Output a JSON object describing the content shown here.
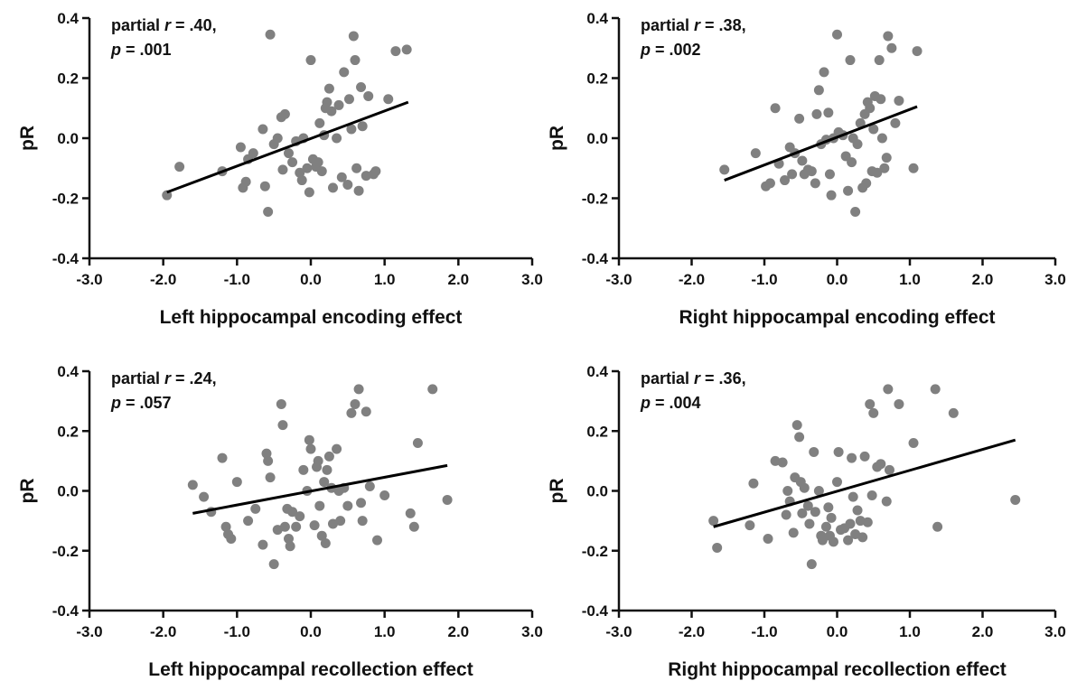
{
  "chart_data": [
    {
      "type": "scatter",
      "xlabel": "Left hippocampal encoding effect",
      "ylabel": "pR",
      "xlim": [
        -3.0,
        3.0
      ],
      "ylim": [
        -0.4,
        0.4
      ],
      "xticks": [
        "-3.0",
        "-2.0",
        "-1.0",
        "0.0",
        "1.0",
        "2.0",
        "3.0"
      ],
      "yticks": [
        "-0.4",
        "-0.2",
        "0.0",
        "0.2",
        "0.4"
      ],
      "annotation": {
        "stat_line": "partial r = .40,",
        "p_line": "p = .001"
      },
      "fit_line": {
        "x": [
          -1.95,
          1.32
        ],
        "y": [
          -0.18,
          0.12
        ]
      },
      "points": [
        {
          "x": -1.95,
          "y": -0.19
        },
        {
          "x": -1.78,
          "y": -0.095
        },
        {
          "x": -1.2,
          "y": -0.11
        },
        {
          "x": -0.95,
          "y": -0.03
        },
        {
          "x": -0.92,
          "y": -0.165
        },
        {
          "x": -0.88,
          "y": -0.145
        },
        {
          "x": -0.85,
          "y": -0.07
        },
        {
          "x": -0.78,
          "y": -0.05
        },
        {
          "x": -0.65,
          "y": 0.03
        },
        {
          "x": -0.62,
          "y": -0.16
        },
        {
          "x": -0.58,
          "y": -0.245
        },
        {
          "x": -0.55,
          "y": 0.345
        },
        {
          "x": -0.5,
          "y": -0.02
        },
        {
          "x": -0.45,
          "y": 0.0
        },
        {
          "x": -0.4,
          "y": 0.07
        },
        {
          "x": -0.38,
          "y": -0.105
        },
        {
          "x": -0.35,
          "y": 0.08
        },
        {
          "x": -0.3,
          "y": -0.05
        },
        {
          "x": -0.25,
          "y": -0.08
        },
        {
          "x": -0.2,
          "y": -0.01
        },
        {
          "x": -0.15,
          "y": -0.115
        },
        {
          "x": -0.12,
          "y": -0.14
        },
        {
          "x": -0.1,
          "y": 0.0
        },
        {
          "x": -0.05,
          "y": -0.1
        },
        {
          "x": -0.02,
          "y": -0.18
        },
        {
          "x": 0.0,
          "y": 0.26
        },
        {
          "x": 0.03,
          "y": -0.07
        },
        {
          "x": 0.07,
          "y": -0.095
        },
        {
          "x": 0.1,
          "y": -0.08
        },
        {
          "x": 0.12,
          "y": 0.05
        },
        {
          "x": 0.15,
          "y": -0.11
        },
        {
          "x": 0.18,
          "y": 0.01
        },
        {
          "x": 0.2,
          "y": 0.1
        },
        {
          "x": 0.22,
          "y": 0.12
        },
        {
          "x": 0.25,
          "y": 0.165
        },
        {
          "x": 0.28,
          "y": 0.09
        },
        {
          "x": 0.3,
          "y": -0.165
        },
        {
          "x": 0.35,
          "y": 0.0
        },
        {
          "x": 0.38,
          "y": 0.11
        },
        {
          "x": 0.42,
          "y": -0.13
        },
        {
          "x": 0.45,
          "y": 0.22
        },
        {
          "x": 0.5,
          "y": -0.155
        },
        {
          "x": 0.52,
          "y": 0.13
        },
        {
          "x": 0.55,
          "y": 0.03
        },
        {
          "x": 0.58,
          "y": 0.34
        },
        {
          "x": 0.6,
          "y": 0.26
        },
        {
          "x": 0.62,
          "y": -0.1
        },
        {
          "x": 0.65,
          "y": -0.175
        },
        {
          "x": 0.68,
          "y": 0.17
        },
        {
          "x": 0.7,
          "y": 0.04
        },
        {
          "x": 0.75,
          "y": -0.125
        },
        {
          "x": 0.78,
          "y": 0.14
        },
        {
          "x": 0.85,
          "y": -0.12
        },
        {
          "x": 0.88,
          "y": -0.11
        },
        {
          "x": 1.05,
          "y": 0.13
        },
        {
          "x": 1.15,
          "y": 0.29
        },
        {
          "x": 1.3,
          "y": 0.295
        }
      ]
    },
    {
      "type": "scatter",
      "xlabel": "Right hippocampal encoding effect",
      "ylabel": "pR",
      "xlim": [
        -3.0,
        3.0
      ],
      "ylim": [
        -0.4,
        0.4
      ],
      "xticks": [
        "-3.0",
        "-2.0",
        "-1.0",
        "0.0",
        "1.0",
        "2.0",
        "3.0"
      ],
      "yticks": [
        "-0.4",
        "-0.2",
        "0.0",
        "0.2",
        "0.4"
      ],
      "annotation": {
        "stat_line": "partial r = .38,",
        "p_line": "p = .002"
      },
      "fit_line": {
        "x": [
          -1.55,
          1.1
        ],
        "y": [
          -0.14,
          0.105
        ]
      },
      "points": [
        {
          "x": -1.55,
          "y": -0.105
        },
        {
          "x": -1.12,
          "y": -0.05
        },
        {
          "x": -0.98,
          "y": -0.16
        },
        {
          "x": -0.92,
          "y": -0.15
        },
        {
          "x": -0.85,
          "y": 0.1
        },
        {
          "x": -0.8,
          "y": -0.085
        },
        {
          "x": -0.72,
          "y": -0.14
        },
        {
          "x": -0.65,
          "y": -0.03
        },
        {
          "x": -0.62,
          "y": -0.12
        },
        {
          "x": -0.58,
          "y": -0.05
        },
        {
          "x": -0.52,
          "y": 0.065
        },
        {
          "x": -0.48,
          "y": -0.075
        },
        {
          "x": -0.45,
          "y": -0.12
        },
        {
          "x": -0.4,
          "y": -0.105
        },
        {
          "x": -0.35,
          "y": -0.11
        },
        {
          "x": -0.3,
          "y": -0.15
        },
        {
          "x": -0.28,
          "y": 0.08
        },
        {
          "x": -0.25,
          "y": 0.16
        },
        {
          "x": -0.22,
          "y": -0.02
        },
        {
          "x": -0.18,
          "y": 0.22
        },
        {
          "x": -0.15,
          "y": -0.005
        },
        {
          "x": -0.12,
          "y": 0.085
        },
        {
          "x": -0.1,
          "y": -0.12
        },
        {
          "x": -0.08,
          "y": -0.19
        },
        {
          "x": -0.05,
          "y": 0.0
        },
        {
          "x": 0.0,
          "y": 0.345
        },
        {
          "x": 0.02,
          "y": 0.02
        },
        {
          "x": 0.08,
          "y": 0.01
        },
        {
          "x": 0.12,
          "y": -0.06
        },
        {
          "x": 0.15,
          "y": -0.175
        },
        {
          "x": 0.18,
          "y": 0.26
        },
        {
          "x": 0.2,
          "y": -0.08
        },
        {
          "x": 0.22,
          "y": 0.0
        },
        {
          "x": 0.25,
          "y": -0.245
        },
        {
          "x": 0.28,
          "y": -0.02
        },
        {
          "x": 0.32,
          "y": 0.05
        },
        {
          "x": 0.35,
          "y": -0.165
        },
        {
          "x": 0.38,
          "y": 0.08
        },
        {
          "x": 0.4,
          "y": -0.15
        },
        {
          "x": 0.42,
          "y": 0.12
        },
        {
          "x": 0.45,
          "y": 0.1
        },
        {
          "x": 0.48,
          "y": -0.11
        },
        {
          "x": 0.5,
          "y": 0.03
        },
        {
          "x": 0.52,
          "y": 0.14
        },
        {
          "x": 0.55,
          "y": -0.115
        },
        {
          "x": 0.58,
          "y": 0.26
        },
        {
          "x": 0.6,
          "y": 0.13
        },
        {
          "x": 0.62,
          "y": 0.0
        },
        {
          "x": 0.65,
          "y": -0.1
        },
        {
          "x": 0.68,
          "y": -0.065
        },
        {
          "x": 0.7,
          "y": 0.34
        },
        {
          "x": 0.75,
          "y": 0.3
        },
        {
          "x": 0.8,
          "y": 0.05
        },
        {
          "x": 0.85,
          "y": 0.125
        },
        {
          "x": 1.05,
          "y": -0.1
        },
        {
          "x": 1.1,
          "y": 0.29
        }
      ]
    },
    {
      "type": "scatter",
      "xlabel": "Left hippocampal recollection effect",
      "ylabel": "pR",
      "xlim": [
        -3.0,
        3.0
      ],
      "ylim": [
        -0.4,
        0.4
      ],
      "xticks": [
        "-3.0",
        "-2.0",
        "-1.0",
        "0.0",
        "1.0",
        "2.0",
        "3.0"
      ],
      "yticks": [
        "-0.4",
        "-0.2",
        "0.0",
        "0.2",
        "0.4"
      ],
      "annotation": {
        "stat_line": "partial r = .24,",
        "p_line": "p = .057"
      },
      "fit_line": {
        "x": [
          -1.6,
          1.85
        ],
        "y": [
          -0.075,
          0.085
        ]
      },
      "points": [
        {
          "x": -1.6,
          "y": 0.02
        },
        {
          "x": -1.45,
          "y": -0.02
        },
        {
          "x": -1.35,
          "y": -0.07
        },
        {
          "x": -1.2,
          "y": 0.11
        },
        {
          "x": -1.15,
          "y": -0.12
        },
        {
          "x": -1.12,
          "y": -0.145
        },
        {
          "x": -1.08,
          "y": -0.16
        },
        {
          "x": -1.0,
          "y": 0.03
        },
        {
          "x": -0.85,
          "y": -0.1
        },
        {
          "x": -0.75,
          "y": -0.06
        },
        {
          "x": -0.65,
          "y": -0.18
        },
        {
          "x": -0.6,
          "y": 0.125
        },
        {
          "x": -0.58,
          "y": 0.1
        },
        {
          "x": -0.55,
          "y": 0.045
        },
        {
          "x": -0.5,
          "y": -0.245
        },
        {
          "x": -0.45,
          "y": -0.13
        },
        {
          "x": -0.4,
          "y": 0.29
        },
        {
          "x": -0.38,
          "y": 0.22
        },
        {
          "x": -0.35,
          "y": -0.12
        },
        {
          "x": -0.32,
          "y": -0.06
        },
        {
          "x": -0.3,
          "y": -0.16
        },
        {
          "x": -0.28,
          "y": -0.185
        },
        {
          "x": -0.25,
          "y": -0.07
        },
        {
          "x": -0.2,
          "y": -0.12
        },
        {
          "x": -0.15,
          "y": -0.085
        },
        {
          "x": -0.1,
          "y": 0.07
        },
        {
          "x": -0.05,
          "y": 0.0
        },
        {
          "x": -0.02,
          "y": 0.17
        },
        {
          "x": 0.0,
          "y": 0.14
        },
        {
          "x": 0.05,
          "y": -0.115
        },
        {
          "x": 0.08,
          "y": 0.08
        },
        {
          "x": 0.1,
          "y": 0.1
        },
        {
          "x": 0.12,
          "y": -0.05
        },
        {
          "x": 0.15,
          "y": -0.15
        },
        {
          "x": 0.18,
          "y": 0.03
        },
        {
          "x": 0.2,
          "y": -0.175
        },
        {
          "x": 0.22,
          "y": 0.07
        },
        {
          "x": 0.25,
          "y": 0.115
        },
        {
          "x": 0.28,
          "y": 0.01
        },
        {
          "x": 0.3,
          "y": -0.11
        },
        {
          "x": 0.35,
          "y": 0.14
        },
        {
          "x": 0.38,
          "y": 0.0
        },
        {
          "x": 0.4,
          "y": -0.1
        },
        {
          "x": 0.45,
          "y": 0.01
        },
        {
          "x": 0.5,
          "y": -0.05
        },
        {
          "x": 0.55,
          "y": 0.26
        },
        {
          "x": 0.6,
          "y": 0.29
        },
        {
          "x": 0.65,
          "y": 0.34
        },
        {
          "x": 0.68,
          "y": -0.04
        },
        {
          "x": 0.7,
          "y": -0.1
        },
        {
          "x": 0.75,
          "y": 0.265
        },
        {
          "x": 0.8,
          "y": 0.015
        },
        {
          "x": 0.9,
          "y": -0.165
        },
        {
          "x": 1.0,
          "y": -0.015
        },
        {
          "x": 1.35,
          "y": -0.075
        },
        {
          "x": 1.4,
          "y": -0.12
        },
        {
          "x": 1.45,
          "y": 0.16
        },
        {
          "x": 1.65,
          "y": 0.34
        },
        {
          "x": 1.85,
          "y": -0.03
        }
      ]
    },
    {
      "type": "scatter",
      "xlabel": "Right hippocampal recollection effect",
      "ylabel": "pR",
      "xlim": [
        -3.0,
        3.0
      ],
      "ylim": [
        -0.4,
        0.4
      ],
      "xticks": [
        "-3.0",
        "-2.0",
        "-1.0",
        "0.0",
        "1.0",
        "2.0",
        "3.0"
      ],
      "yticks": [
        "-0.4",
        "-0.2",
        "0.0",
        "0.2",
        "0.4"
      ],
      "annotation": {
        "stat_line": "partial r = .36,",
        "p_line": "p = .004"
      },
      "fit_line": {
        "x": [
          -1.7,
          2.45
        ],
        "y": [
          -0.12,
          0.17
        ]
      },
      "points": [
        {
          "x": -1.7,
          "y": -0.1
        },
        {
          "x": -1.65,
          "y": -0.19
        },
        {
          "x": -1.2,
          "y": -0.115
        },
        {
          "x": -1.15,
          "y": 0.025
        },
        {
          "x": -0.95,
          "y": -0.16
        },
        {
          "x": -0.85,
          "y": 0.1
        },
        {
          "x": -0.75,
          "y": 0.095
        },
        {
          "x": -0.7,
          "y": -0.08
        },
        {
          "x": -0.68,
          "y": 0.0
        },
        {
          "x": -0.65,
          "y": -0.035
        },
        {
          "x": -0.6,
          "y": -0.14
        },
        {
          "x": -0.58,
          "y": 0.045
        },
        {
          "x": -0.55,
          "y": 0.22
        },
        {
          "x": -0.52,
          "y": 0.18
        },
        {
          "x": -0.5,
          "y": 0.03
        },
        {
          "x": -0.48,
          "y": -0.075
        },
        {
          "x": -0.45,
          "y": 0.01
        },
        {
          "x": -0.4,
          "y": -0.05
        },
        {
          "x": -0.38,
          "y": -0.11
        },
        {
          "x": -0.35,
          "y": -0.245
        },
        {
          "x": -0.32,
          "y": 0.13
        },
        {
          "x": -0.3,
          "y": -0.07
        },
        {
          "x": -0.25,
          "y": 0.0
        },
        {
          "x": -0.22,
          "y": -0.15
        },
        {
          "x": -0.2,
          "y": -0.165
        },
        {
          "x": -0.15,
          "y": -0.12
        },
        {
          "x": -0.12,
          "y": -0.055
        },
        {
          "x": -0.1,
          "y": -0.15
        },
        {
          "x": -0.08,
          "y": -0.09
        },
        {
          "x": -0.05,
          "y": -0.17
        },
        {
          "x": 0.0,
          "y": 0.03
        },
        {
          "x": 0.02,
          "y": 0.13
        },
        {
          "x": 0.05,
          "y": -0.13
        },
        {
          "x": 0.1,
          "y": -0.125
        },
        {
          "x": 0.15,
          "y": -0.165
        },
        {
          "x": 0.18,
          "y": -0.11
        },
        {
          "x": 0.2,
          "y": 0.11
        },
        {
          "x": 0.22,
          "y": -0.02
        },
        {
          "x": 0.25,
          "y": -0.145
        },
        {
          "x": 0.28,
          "y": -0.065
        },
        {
          "x": 0.32,
          "y": -0.1
        },
        {
          "x": 0.35,
          "y": -0.155
        },
        {
          "x": 0.38,
          "y": 0.115
        },
        {
          "x": 0.42,
          "y": -0.105
        },
        {
          "x": 0.45,
          "y": 0.29
        },
        {
          "x": 0.48,
          "y": -0.015
        },
        {
          "x": 0.5,
          "y": 0.26
        },
        {
          "x": 0.55,
          "y": 0.08
        },
        {
          "x": 0.6,
          "y": 0.09
        },
        {
          "x": 0.68,
          "y": -0.035
        },
        {
          "x": 0.7,
          "y": 0.34
        },
        {
          "x": 0.72,
          "y": 0.07
        },
        {
          "x": 0.85,
          "y": 0.29
        },
        {
          "x": 1.05,
          "y": 0.16
        },
        {
          "x": 1.35,
          "y": 0.34
        },
        {
          "x": 1.38,
          "y": -0.12
        },
        {
          "x": 1.6,
          "y": 0.26
        },
        {
          "x": 2.45,
          "y": -0.03
        }
      ]
    }
  ]
}
